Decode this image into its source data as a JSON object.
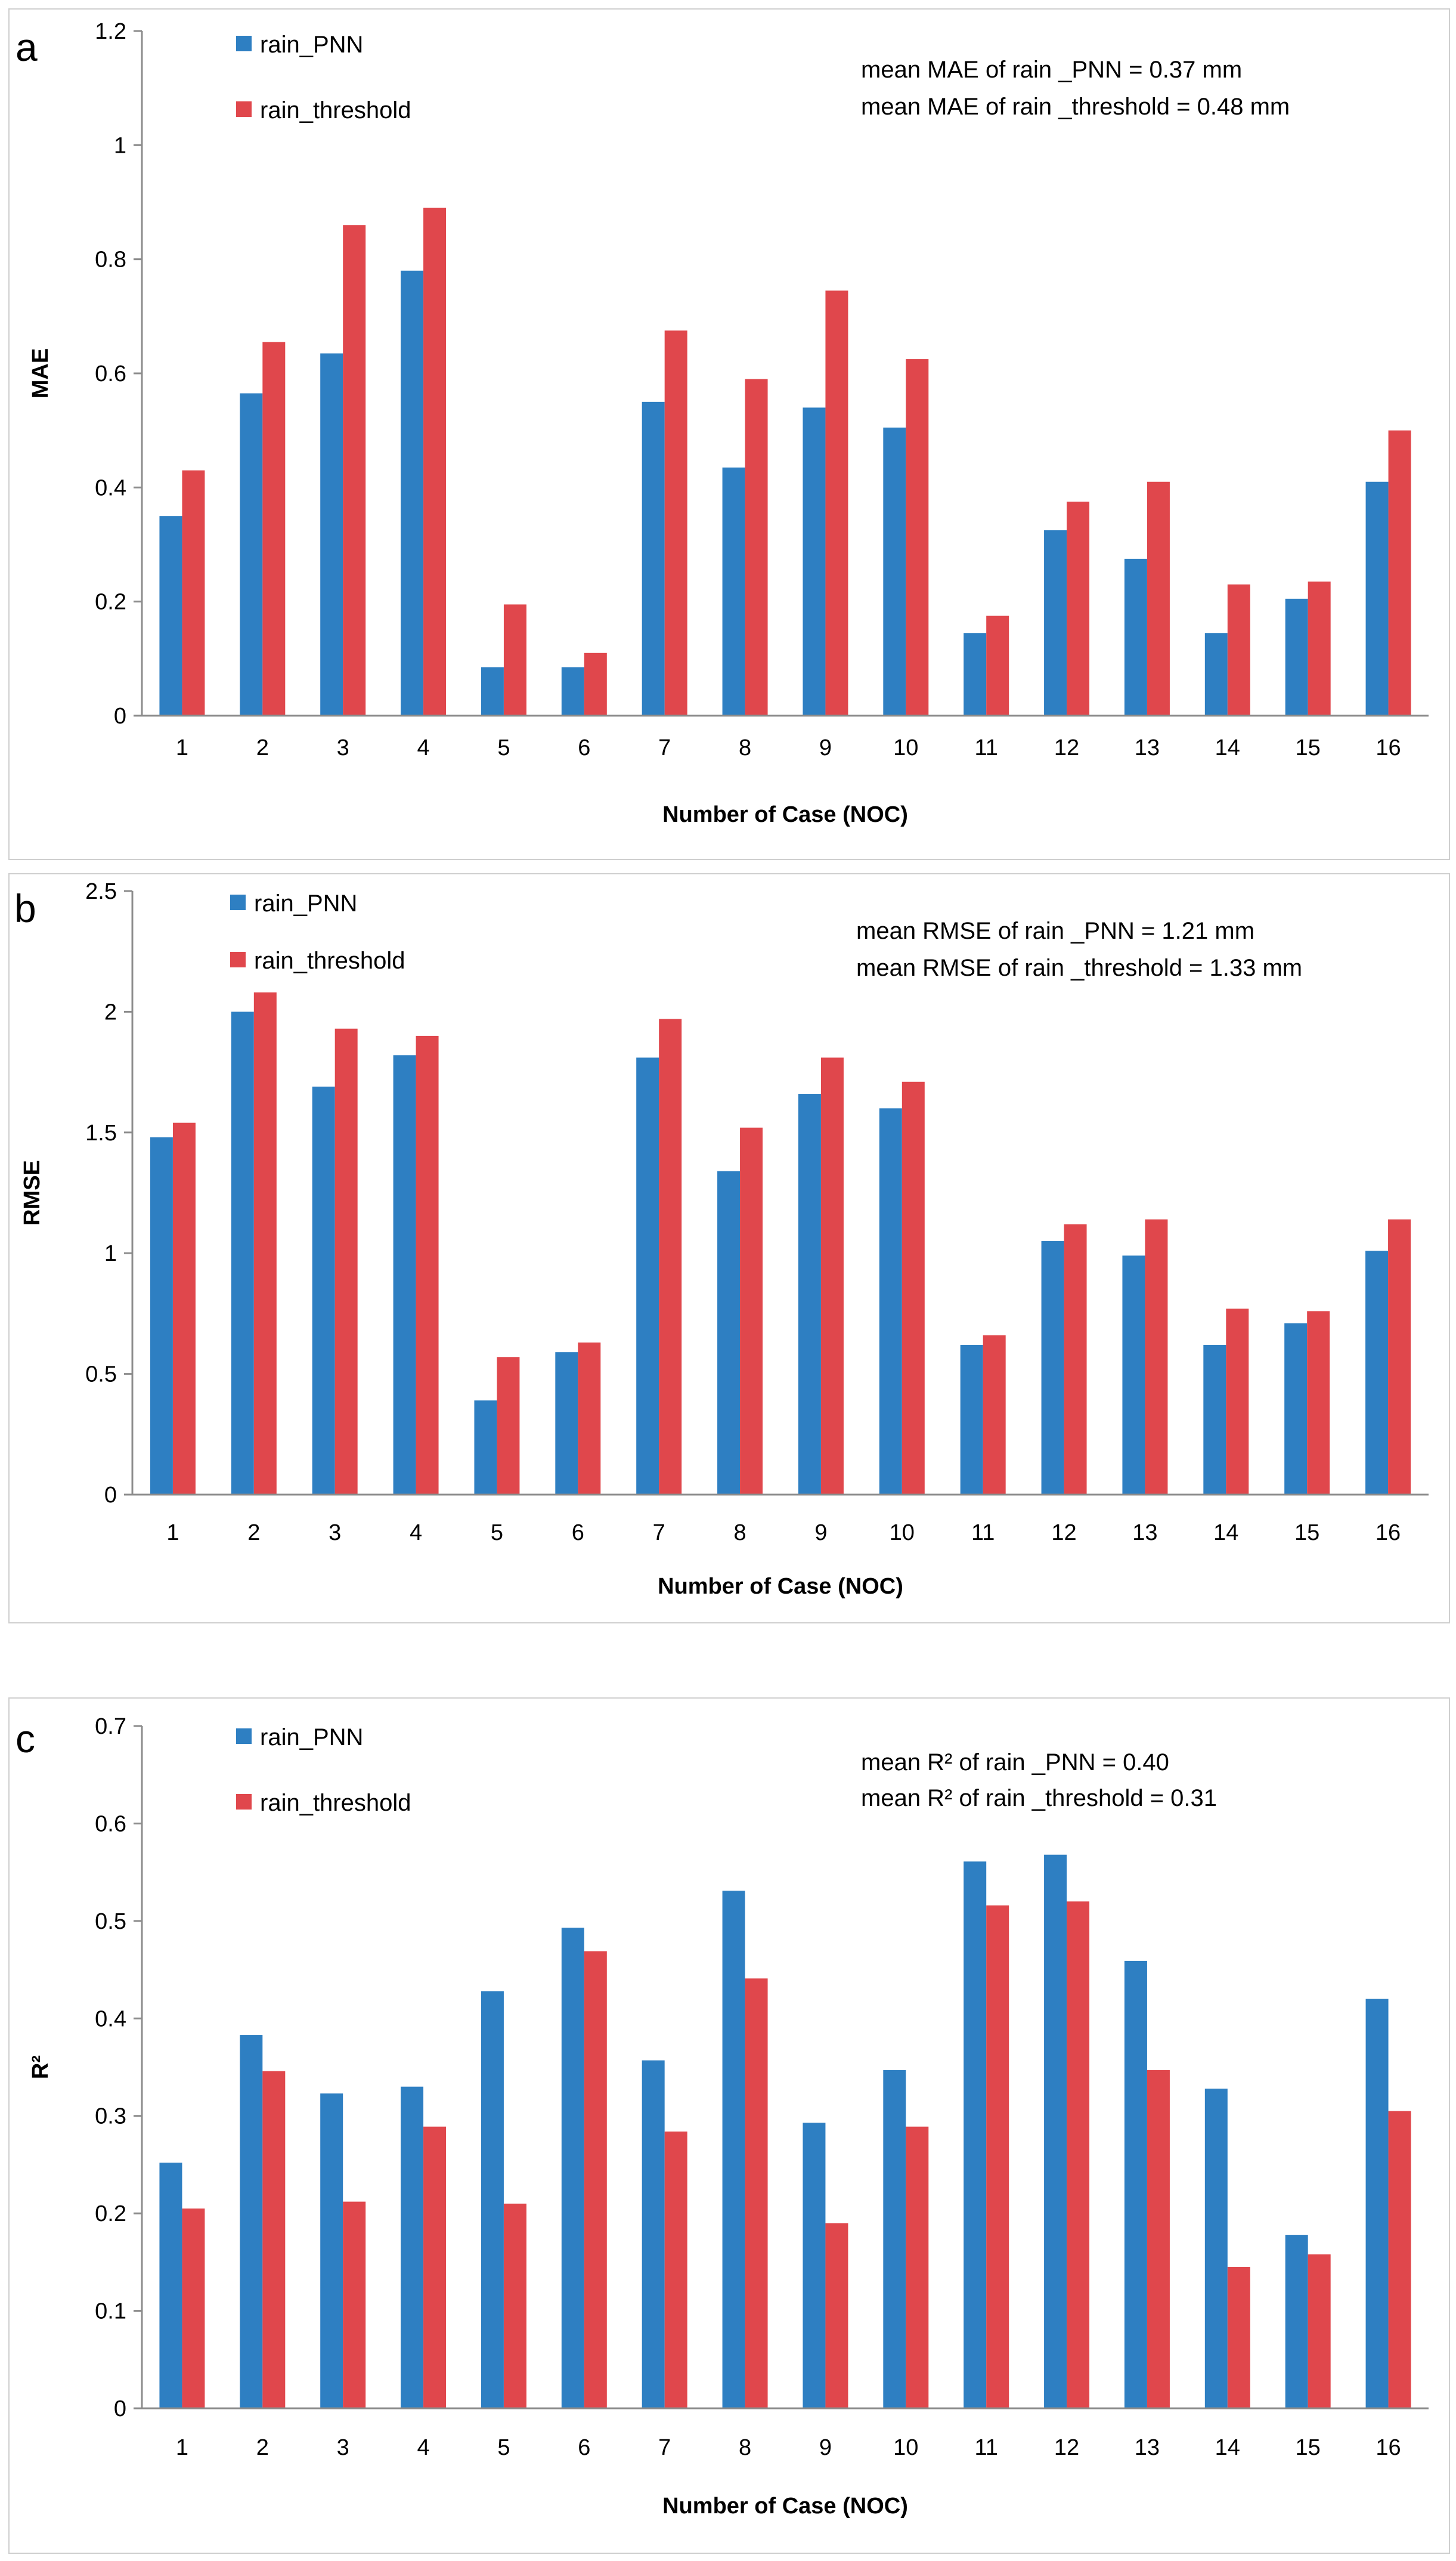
{
  "colors": {
    "rain_PNN": "#2e7fc2",
    "rain_threshold": "#e0474c",
    "axis": "#8c8c8c",
    "border": "#cfcfcf"
  },
  "chart_data": [
    {
      "id": "a",
      "type": "bar",
      "panel_label": "a",
      "categories": [
        "1",
        "2",
        "3",
        "4",
        "5",
        "6",
        "7",
        "8",
        "9",
        "10",
        "11",
        "12",
        "13",
        "14",
        "15",
        "16"
      ],
      "series": [
        {
          "name": "rain_PNN",
          "values": [
            0.35,
            0.565,
            0.635,
            0.78,
            0.085,
            0.085,
            0.55,
            0.435,
            0.54,
            0.505,
            0.145,
            0.325,
            0.275,
            0.145,
            0.205,
            0.41
          ]
        },
        {
          "name": "rain_threshold",
          "values": [
            0.43,
            0.655,
            0.86,
            0.89,
            0.195,
            0.11,
            0.675,
            0.59,
            0.745,
            0.625,
            0.175,
            0.375,
            0.41,
            0.23,
            0.235,
            0.5
          ]
        }
      ],
      "xlabel": "Number of Case (NOC)",
      "ylabel": "MAE",
      "ylim": [
        0,
        1.2
      ],
      "yticks": [
        "0",
        "0.2",
        "0.4",
        "0.6",
        "0.8",
        "1",
        "1.2"
      ],
      "annotations": [
        "mean MAE of rain _PNN = 0.37 mm",
        "mean MAE of rain _threshold = 0.48 mm"
      ]
    },
    {
      "id": "b",
      "type": "bar",
      "panel_label": "b",
      "categories": [
        "1",
        "2",
        "3",
        "4",
        "5",
        "6",
        "7",
        "8",
        "9",
        "10",
        "11",
        "12",
        "13",
        "14",
        "15",
        "16"
      ],
      "series": [
        {
          "name": "rain_PNN",
          "values": [
            1.48,
            2.0,
            1.69,
            1.82,
            0.39,
            0.59,
            1.81,
            1.34,
            1.66,
            1.6,
            0.62,
            1.05,
            0.99,
            0.62,
            0.71,
            1.01
          ]
        },
        {
          "name": "rain_threshold",
          "values": [
            1.54,
            2.08,
            1.93,
            1.9,
            0.57,
            0.63,
            1.97,
            1.52,
            1.81,
            1.71,
            0.66,
            1.12,
            1.14,
            0.77,
            0.76,
            1.14
          ]
        }
      ],
      "xlabel": "Number of Case (NOC)",
      "ylabel": "RMSE",
      "ylim": [
        0,
        2.5
      ],
      "yticks": [
        "0",
        "0.5",
        "1",
        "1.5",
        "2",
        "2.5"
      ],
      "annotations": [
        "mean RMSE of rain _PNN = 1.21 mm",
        "mean RMSE of rain _threshold = 1.33 mm"
      ]
    },
    {
      "id": "c",
      "type": "bar",
      "panel_label": "c",
      "categories": [
        "1",
        "2",
        "3",
        "4",
        "5",
        "6",
        "7",
        "8",
        "9",
        "10",
        "11",
        "12",
        "13",
        "14",
        "15",
        "16"
      ],
      "series": [
        {
          "name": "rain_PNN",
          "values": [
            0.252,
            0.383,
            0.323,
            0.33,
            0.428,
            0.493,
            0.357,
            0.531,
            0.293,
            0.347,
            0.561,
            0.568,
            0.459,
            0.328,
            0.178,
            0.42
          ]
        },
        {
          "name": "rain_threshold",
          "values": [
            0.205,
            0.346,
            0.212,
            0.289,
            0.21,
            0.469,
            0.284,
            0.441,
            0.19,
            0.289,
            0.516,
            0.52,
            0.347,
            0.145,
            0.158,
            0.305
          ]
        }
      ],
      "xlabel": "Number of Case (NOC)",
      "ylabel": "R²",
      "ylim": [
        0,
        0.7
      ],
      "yticks": [
        "0",
        "0.1",
        "0.2",
        "0.3",
        "0.4",
        "0.5",
        "0.6",
        "0.7"
      ],
      "annotations": [
        "mean R² of rain _PNN = 0.40",
        "mean R² of rain _threshold = 0.31"
      ]
    }
  ]
}
